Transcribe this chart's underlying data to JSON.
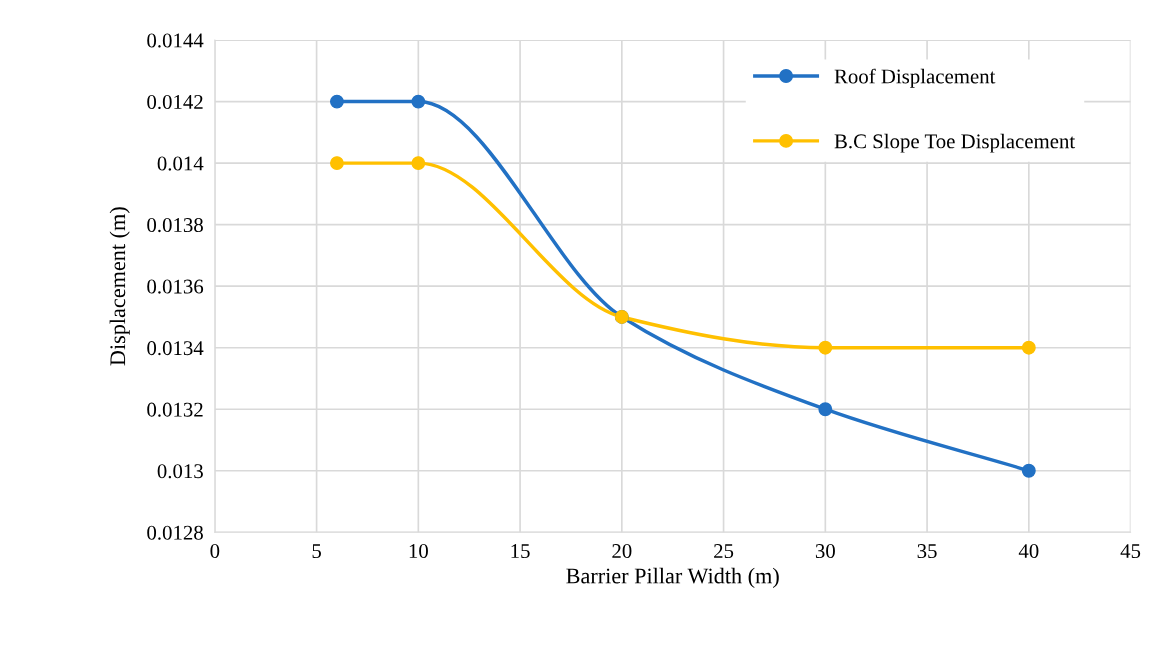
{
  "chart_data": {
    "type": "line",
    "xlabel": "Barrier Pillar Width (m)",
    "ylabel": "Displacement (m)",
    "x": [
      6,
      10,
      20,
      30,
      40
    ],
    "series": [
      {
        "name": "Roof Displacement",
        "color": "#2271c4",
        "values": [
          0.0142,
          0.0142,
          0.0135,
          0.0132,
          0.013
        ]
      },
      {
        "name": "B.C Slope Toe Displacement",
        "color": "#ffc000",
        "values": [
          0.014,
          0.014,
          0.0135,
          0.0134,
          0.0134
        ]
      }
    ],
    "xlim": [
      0,
      45
    ],
    "xticks": [
      0,
      5,
      10,
      15,
      20,
      25,
      30,
      35,
      40,
      45
    ],
    "ylim": [
      0.0128,
      0.0144
    ],
    "yticks": [
      0.0128,
      0.013,
      0.0132,
      0.0134,
      0.0136,
      0.0138,
      0.014,
      0.0142,
      0.0144
    ],
    "grid": true,
    "legend": "top right",
    "marker": "circle",
    "line_style": "solid"
  }
}
